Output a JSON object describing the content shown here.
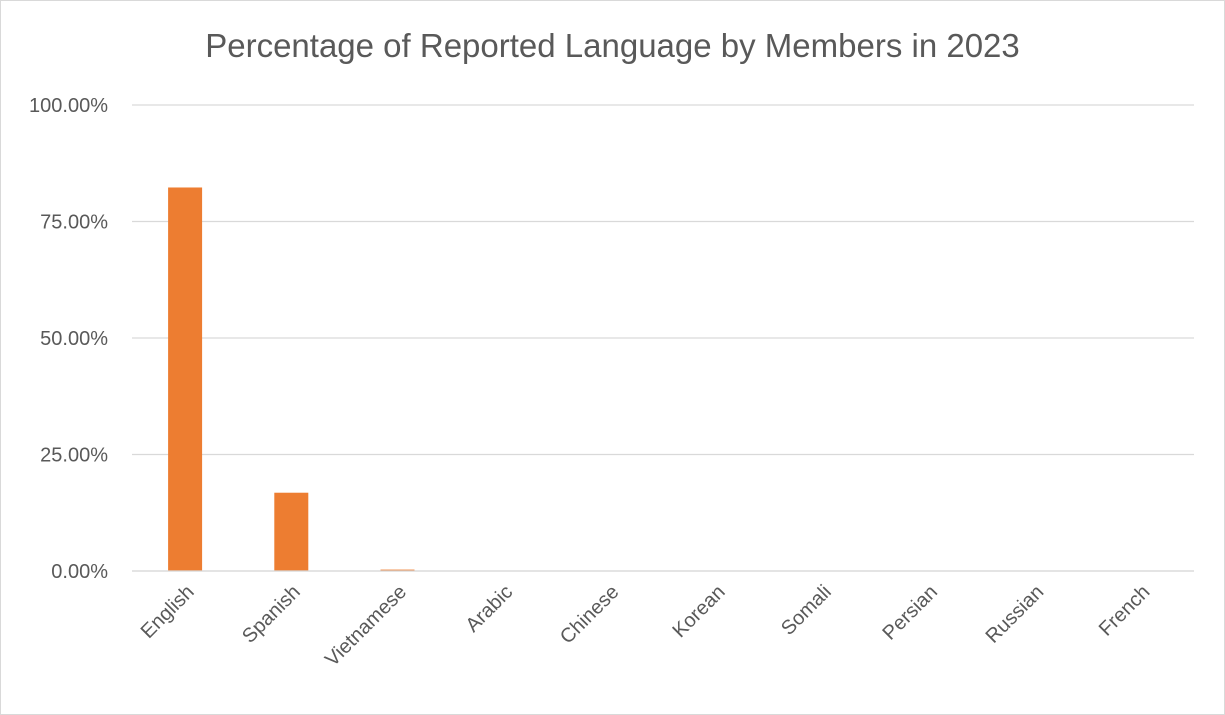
{
  "chart_data": {
    "type": "bar",
    "title": "Percentage of Reported Language by Members in 2023",
    "xlabel": "",
    "ylabel": "",
    "categories": [
      "English",
      "Spanish",
      "Vietnamese",
      "Arabic",
      "Chinese",
      "Korean",
      "Somali",
      "Persian",
      "Russian",
      "French"
    ],
    "values": [
      82.3,
      16.8,
      0.3,
      0.1,
      0.1,
      0.1,
      0.1,
      0.1,
      0.1,
      0.05
    ],
    "ylim": [
      0,
      100
    ],
    "yticks": [
      0,
      25,
      50,
      75,
      100
    ],
    "ytick_labels": [
      "0.00%",
      "25.00%",
      "50.00%",
      "75.00%",
      "100.00%"
    ],
    "grid": true,
    "legend": "none",
    "colors": {
      "bar": "#ED7D31",
      "grid": "#d9d9d9",
      "text": "#595959"
    }
  }
}
